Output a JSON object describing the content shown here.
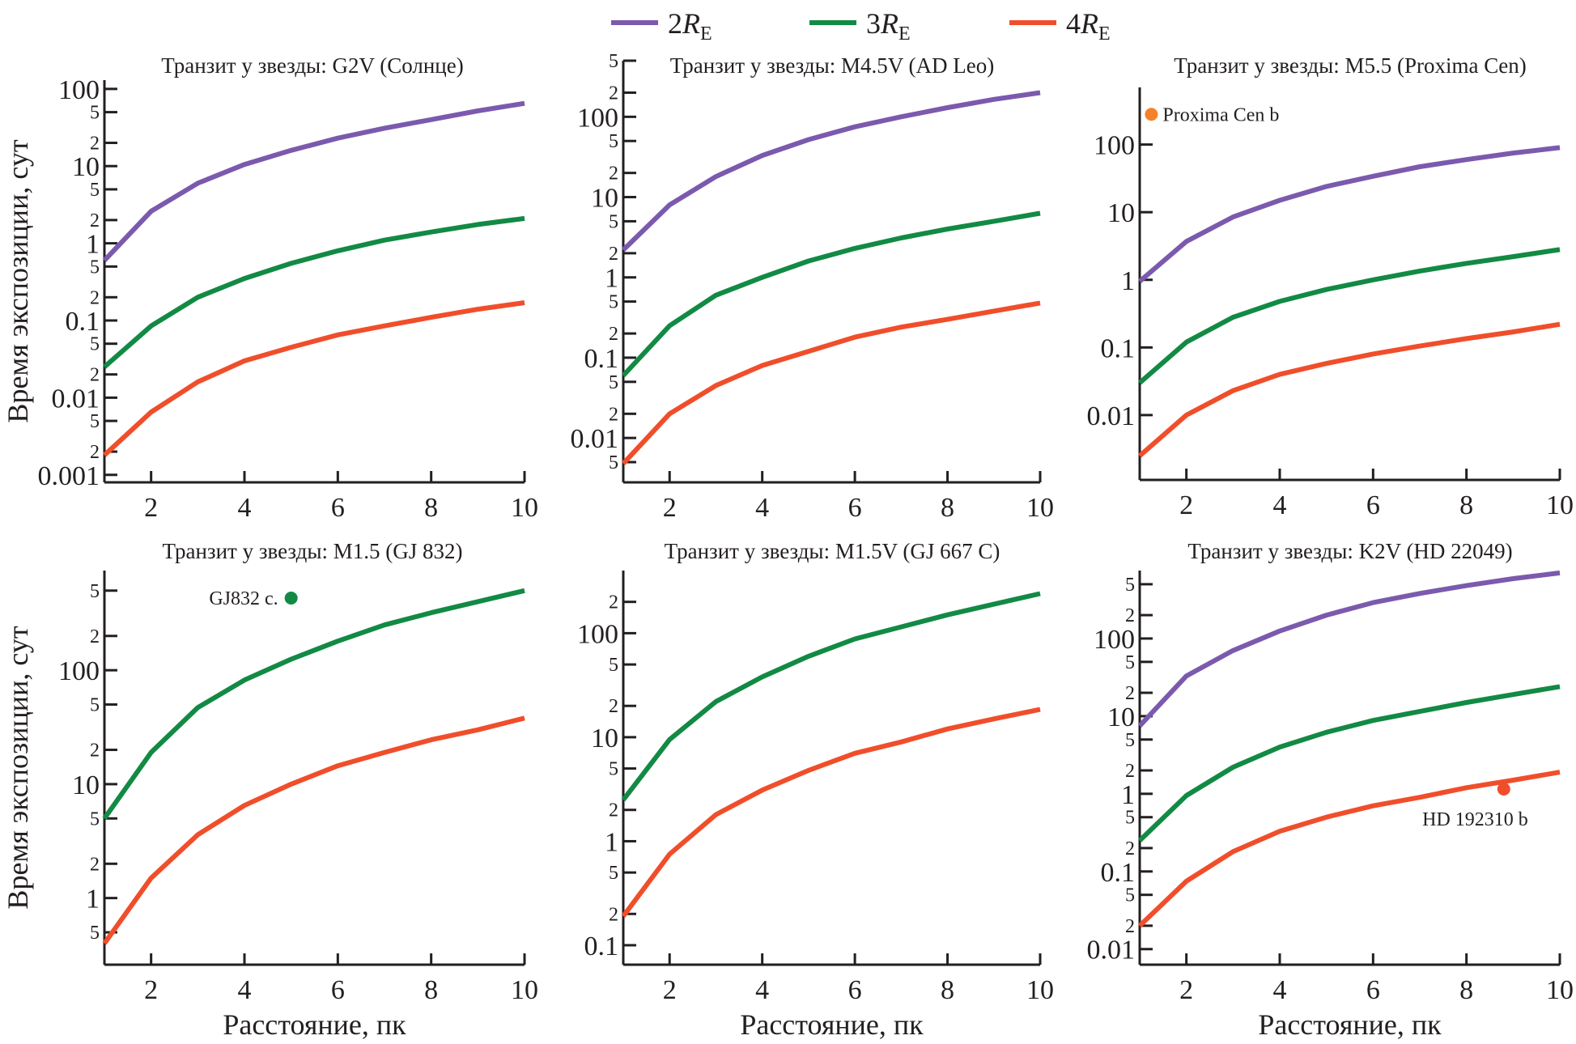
{
  "legend": {
    "items": [
      {
        "num": "2",
        "sym": "R",
        "sub": "E",
        "color": "#7b5aae"
      },
      {
        "num": "3",
        "sym": "R",
        "sub": "E",
        "color": "#128a44"
      },
      {
        "num": "4",
        "sym": "R",
        "sub": "E",
        "color": "#f04e2b"
      }
    ]
  },
  "chart_data": [
    {
      "type": "line",
      "title": "Транзит у звезды: G2V (Солнце)",
      "xlabel": "",
      "ylabel": "Время экспозиции, сут",
      "yscale": "log",
      "xlim": [
        1,
        10
      ],
      "ylim": [
        0.0008,
        130
      ],
      "x": [
        1,
        2,
        3,
        4,
        5,
        6,
        7,
        8,
        9,
        10
      ],
      "xticks": [
        2,
        4,
        6,
        8,
        10
      ],
      "yticks_major": [
        {
          "v": 0.001,
          "l": "0.001"
        },
        {
          "v": 0.01,
          "l": "0.01"
        },
        {
          "v": 0.1,
          "l": "0.1"
        },
        {
          "v": 1,
          "l": "1"
        },
        {
          "v": 10,
          "l": "10"
        },
        {
          "v": 100,
          "l": "100"
        }
      ],
      "yticks_minor": [
        2,
        5
      ],
      "series": [
        {
          "name": "2R_E",
          "values": [
            0.6,
            2.6,
            6,
            10.5,
            16,
            23,
            31,
            40,
            52,
            65
          ]
        },
        {
          "name": "3R_E",
          "values": [
            0.025,
            0.085,
            0.2,
            0.35,
            0.55,
            0.8,
            1.1,
            1.4,
            1.75,
            2.1
          ]
        },
        {
          "name": "4R_E",
          "values": [
            0.0018,
            0.0065,
            0.016,
            0.03,
            0.045,
            0.065,
            0.085,
            0.11,
            0.14,
            0.17
          ]
        }
      ],
      "annotations": []
    },
    {
      "type": "line",
      "title": "Транзит у звезды: M4.5V (AD Leo)",
      "xlabel": "",
      "ylabel": "",
      "yscale": "log",
      "xlim": [
        1,
        10
      ],
      "ylim": [
        0.0028,
        500
      ],
      "x": [
        1,
        2,
        3,
        4,
        5,
        6,
        7,
        8,
        9,
        10
      ],
      "xticks": [
        2,
        4,
        6,
        8,
        10
      ],
      "yticks_major": [
        {
          "v": 0.01,
          "l": "0.01"
        },
        {
          "v": 0.1,
          "l": "0.1"
        },
        {
          "v": 1,
          "l": "1"
        },
        {
          "v": 10,
          "l": "10"
        },
        {
          "v": 100,
          "l": "100"
        }
      ],
      "yticks_minor": [
        2,
        5
      ],
      "series": [
        {
          "name": "2R_E",
          "values": [
            2.2,
            8,
            18,
            33,
            52,
            75,
            100,
            130,
            165,
            200
          ]
        },
        {
          "name": "3R_E",
          "values": [
            0.06,
            0.25,
            0.6,
            1,
            1.6,
            2.3,
            3.1,
            4,
            5,
            6.3
          ]
        },
        {
          "name": "4R_E",
          "values": [
            0.0048,
            0.02,
            0.045,
            0.08,
            0.12,
            0.18,
            0.24,
            0.3,
            0.38,
            0.48
          ]
        }
      ],
      "annotations": []
    },
    {
      "type": "line",
      "title": "Транзит у звезды: M5.5 (Proxima Cen)",
      "xlabel": "",
      "ylabel": "",
      "yscale": "log",
      "xlim": [
        1,
        10
      ],
      "ylim": [
        0.0011,
        700
      ],
      "x": [
        1,
        2,
        3,
        4,
        5,
        6,
        7,
        8,
        9,
        10
      ],
      "xticks": [
        2,
        4,
        6,
        8,
        10
      ],
      "yticks_major": [
        {
          "v": 0.01,
          "l": "0.01"
        },
        {
          "v": 0.1,
          "l": "0.1"
        },
        {
          "v": 1,
          "l": "1"
        },
        {
          "v": 10,
          "l": "10"
        },
        {
          "v": 100,
          "l": "100"
        }
      ],
      "yticks_minor": [],
      "series": [
        {
          "name": "2R_E",
          "values": [
            0.95,
            3.7,
            8.5,
            15,
            24,
            34,
            47,
            60,
            75,
            90
          ]
        },
        {
          "name": "3R_E",
          "values": [
            0.03,
            0.12,
            0.28,
            0.48,
            0.72,
            1,
            1.35,
            1.75,
            2.2,
            2.8
          ]
        },
        {
          "name": "4R_E",
          "values": [
            0.0025,
            0.01,
            0.023,
            0.04,
            0.058,
            0.08,
            0.105,
            0.135,
            0.17,
            0.22
          ]
        }
      ],
      "annotations": [
        {
          "label": "Proxima Cen b",
          "x": 1.25,
          "y": 280,
          "color": "#f5822a",
          "label_side": "right"
        }
      ]
    },
    {
      "type": "line",
      "title": "Транзит у звезды: M1.5 (GJ 832)",
      "xlabel": "Расстояние, пк",
      "ylabel": "Время экспозиции, сут",
      "yscale": "log",
      "xlim": [
        1,
        10
      ],
      "ylim": [
        0.26,
        750
      ],
      "x": [
        1,
        2,
        3,
        4,
        5,
        6,
        7,
        8,
        9,
        10
      ],
      "xticks": [
        2,
        4,
        6,
        8,
        10
      ],
      "yticks_major": [
        {
          "v": 1,
          "l": "1"
        },
        {
          "v": 10,
          "l": "10"
        },
        {
          "v": 100,
          "l": "100"
        }
      ],
      "yticks_minor": [
        2,
        5
      ],
      "series": [
        {
          "name": "3R_E",
          "values": [
            5,
            19,
            47,
            82,
            125,
            180,
            250,
            320,
            400,
            500
          ]
        },
        {
          "name": "4R_E",
          "values": [
            0.4,
            1.5,
            3.6,
            6.5,
            10,
            14.5,
            19,
            24.5,
            30,
            38
          ]
        }
      ],
      "annotations": [
        {
          "label": "GJ832 c.",
          "x": 5.0,
          "y": 430,
          "color": "#128a44",
          "label_side": "left"
        }
      ]
    },
    {
      "type": "line",
      "title": "Транзит у звезды: M1.5V (GJ 667 C)",
      "xlabel": "Расстояние, пк",
      "ylabel": "",
      "yscale": "log",
      "xlim": [
        1,
        10
      ],
      "ylim": [
        0.065,
        400
      ],
      "x": [
        1,
        2,
        3,
        4,
        5,
        6,
        7,
        8,
        9,
        10
      ],
      "xticks": [
        2,
        4,
        6,
        8,
        10
      ],
      "yticks_major": [
        {
          "v": 0.1,
          "l": "0.1"
        },
        {
          "v": 1,
          "l": "1"
        },
        {
          "v": 10,
          "l": "10"
        },
        {
          "v": 100,
          "l": "100"
        }
      ],
      "yticks_minor": [
        2,
        5
      ],
      "series": [
        {
          "name": "3R_E",
          "values": [
            2.5,
            9.5,
            22,
            38,
            60,
            88,
            115,
            150,
            190,
            240
          ]
        },
        {
          "name": "4R_E",
          "values": [
            0.19,
            0.75,
            1.8,
            3.1,
            4.8,
            7,
            9,
            12,
            15,
            18.5
          ]
        }
      ],
      "annotations": []
    },
    {
      "type": "line",
      "title": "Транзит у звезды: K2V (HD 22049)",
      "xlabel": "Расстояние, пк",
      "ylabel": "",
      "yscale": "log",
      "xlim": [
        1,
        10
      ],
      "ylim": [
        0.0063,
        750
      ],
      "x": [
        1,
        2,
        3,
        4,
        5,
        6,
        7,
        8,
        9,
        10
      ],
      "xticks": [
        2,
        4,
        6,
        8,
        10
      ],
      "yticks_major": [
        {
          "v": 0.01,
          "l": "0.01"
        },
        {
          "v": 0.1,
          "l": "0.1"
        },
        {
          "v": 1,
          "l": "1"
        },
        {
          "v": 10,
          "l": "10"
        },
        {
          "v": 100,
          "l": "100"
        }
      ],
      "yticks_minor": [
        2,
        5
      ],
      "series": [
        {
          "name": "2R_E",
          "values": [
            7.5,
            33,
            70,
            125,
            200,
            290,
            380,
            480,
            590,
            700
          ]
        },
        {
          "name": "3R_E",
          "values": [
            0.25,
            0.95,
            2.2,
            4,
            6.2,
            8.8,
            11.5,
            15,
            19,
            24
          ]
        },
        {
          "name": "4R_E",
          "values": [
            0.02,
            0.075,
            0.18,
            0.33,
            0.5,
            0.7,
            0.9,
            1.2,
            1.5,
            1.9
          ]
        }
      ],
      "annotations": [
        {
          "label": "HD 192310 b",
          "x": 8.8,
          "y": 1.15,
          "color": "#f04e2b",
          "label_side": "below"
        }
      ]
    }
  ]
}
